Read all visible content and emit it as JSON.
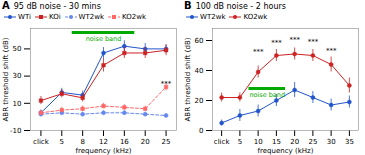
{
  "chart_data": [
    {
      "type": "line",
      "panel_label": "A",
      "title": "95 dB noise - 30 mins",
      "xlabel": "frequency (kHz)",
      "ylabel": "ABR threshold shift (dB)",
      "categories": [
        "click",
        "5",
        "8",
        "12",
        "16",
        "20",
        "25"
      ],
      "xlim": [
        -0.5,
        6.5
      ],
      "ylim": [
        -10,
        65
      ],
      "yticks": [
        -10,
        10,
        30,
        50
      ],
      "legend": "upper left",
      "grid": false,
      "series": [
        {
          "name": "WTi",
          "color": "#2255cc",
          "line_style": "solid",
          "marker": "circle",
          "values": [
            3,
            18,
            16,
            47,
            52,
            50,
            50
          ],
          "yerr": [
            2,
            3,
            3,
            4,
            4,
            4,
            3
          ]
        },
        {
          "name": "KOi",
          "color": "#cc2222",
          "line_style": "solid",
          "marker": "square",
          "values": [
            12,
            17,
            14,
            38,
            47,
            47,
            49
          ],
          "yerr": [
            3,
            3,
            3,
            5,
            4,
            4,
            4
          ]
        },
        {
          "name": "WT2wk",
          "color": "#6688ee",
          "line_style": "dashed",
          "marker": "circle",
          "values": [
            2,
            3,
            2,
            3,
            3,
            2,
            1
          ],
          "yerr": [
            1.5,
            1.5,
            1.5,
            1.5,
            1.5,
            1.5,
            1.5
          ]
        },
        {
          "name": "KO2wk",
          "color": "#ff6666",
          "line_style": "dashed",
          "marker": "square",
          "values": [
            3,
            5,
            6,
            8,
            7,
            6,
            22
          ],
          "yerr": [
            2,
            2,
            2,
            2,
            2,
            2,
            3
          ]
        }
      ],
      "annotations": [
        {
          "type": "band",
          "x": [
            1.5,
            4.5
          ],
          "y": 62,
          "text": "noise band",
          "color": "#00aa00"
        },
        {
          "x": 6,
          "y": 23,
          "text": "***"
        }
      ]
    },
    {
      "type": "line",
      "panel_label": "B",
      "title": "100 dB noise - 2 hours",
      "xlabel": "frequency (kHz)",
      "ylabel": "ABR threshold shift (dB)",
      "categories": [
        "click",
        "5",
        "10",
        "15",
        "20",
        "25",
        "30",
        "35"
      ],
      "xlim": [
        -0.5,
        7.5
      ],
      "ylim": [
        0,
        68
      ],
      "yticks": [
        0,
        20,
        40,
        60
      ],
      "legend": "upper left",
      "grid": false,
      "series": [
        {
          "name": "WT2wk",
          "color": "#2255cc",
          "line_style": "solid",
          "marker": "circle",
          "values": [
            5,
            10,
            13,
            20,
            27,
            22,
            17,
            19
          ],
          "yerr": [
            2,
            4,
            4,
            4,
            5,
            4,
            4,
            4
          ]
        },
        {
          "name": "KO2wk",
          "color": "#cc2222",
          "line_style": "solid",
          "marker": "circle",
          "values": [
            22,
            22,
            39,
            50,
            51,
            50,
            44,
            30
          ],
          "yerr": [
            3,
            3,
            4,
            4,
            4,
            4,
            5,
            5
          ]
        }
      ],
      "annotations": [
        {
          "type": "band",
          "x": [
            1.5,
            3.5
          ],
          "y": 28,
          "text": "noise band",
          "color": "#00aa00"
        },
        {
          "x": 2,
          "y": 51,
          "text": "***"
        },
        {
          "x": 3,
          "y": 57,
          "text": "***"
        },
        {
          "x": 4,
          "y": 59,
          "text": "***"
        },
        {
          "x": 5,
          "y": 58,
          "text": "***"
        },
        {
          "x": 6,
          "y": 52,
          "text": "***"
        }
      ]
    }
  ]
}
